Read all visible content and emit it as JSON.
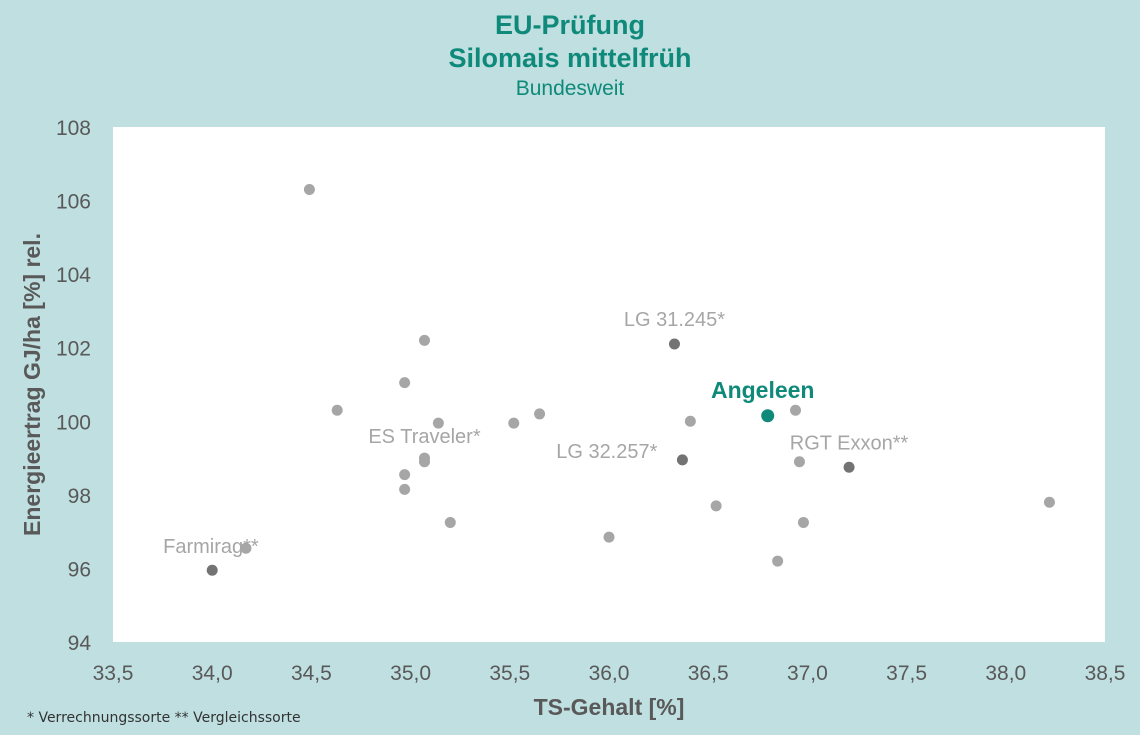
{
  "header": {
    "title": "EU-Prüfung",
    "subtitle": "Silomais mittelfrüh",
    "region": "Bundesweit"
  },
  "footnote": "* Verrechnungssorte ** Vergleichssorte",
  "colors": {
    "background": "#bfdfe1",
    "plot_area": "#ffffff",
    "point_default": "#a6a6a6",
    "point_reference": "#737373",
    "point_highlight": "#0f8a7a",
    "title": "#0f8a7a",
    "axis_text": "#595959"
  },
  "chart_data": {
    "type": "scatter",
    "title": "EU-Prüfung Silomais mittelfrüh",
    "subtitle": "Bundesweit",
    "xlabel": "TS-Gehalt [%]",
    "ylabel": "Energieertrag GJ/ha [%] rel.",
    "xlim": [
      33.5,
      38.5
    ],
    "ylim": [
      94,
      108
    ],
    "xticks": [
      "33,5",
      "34,0",
      "34,5",
      "35,0",
      "35,5",
      "36,0",
      "36,5",
      "37,0",
      "37,5",
      "38,0",
      "38,5"
    ],
    "yticks": [
      "94",
      "96",
      "98",
      "100",
      "102",
      "104",
      "106",
      "108"
    ],
    "grid": false,
    "points": [
      {
        "x": 34.49,
        "y": 106.3,
        "kind": "default",
        "label": ""
      },
      {
        "x": 35.07,
        "y": 102.2,
        "kind": "default",
        "label": ""
      },
      {
        "x": 34.97,
        "y": 101.05,
        "kind": "default",
        "label": ""
      },
      {
        "x": 34.63,
        "y": 100.3,
        "kind": "default",
        "label": ""
      },
      {
        "x": 35.14,
        "y": 99.95,
        "kind": "default",
        "label": ""
      },
      {
        "x": 35.52,
        "y": 99.95,
        "kind": "default",
        "label": ""
      },
      {
        "x": 35.65,
        "y": 100.2,
        "kind": "default",
        "label": ""
      },
      {
        "x": 35.07,
        "y": 99.0,
        "kind": "default",
        "label": "ES Traveler*"
      },
      {
        "x": 35.07,
        "y": 98.9,
        "kind": "default",
        "label": ""
      },
      {
        "x": 34.97,
        "y": 98.55,
        "kind": "default",
        "label": ""
      },
      {
        "x": 34.97,
        "y": 98.15,
        "kind": "default",
        "label": ""
      },
      {
        "x": 35.2,
        "y": 97.25,
        "kind": "default",
        "label": ""
      },
      {
        "x": 36.41,
        "y": 100.0,
        "kind": "default",
        "label": ""
      },
      {
        "x": 36.33,
        "y": 102.1,
        "kind": "reference",
        "label": "LG 31.245*"
      },
      {
        "x": 36.37,
        "y": 98.95,
        "kind": "reference",
        "label": "LG 32.257*"
      },
      {
        "x": 36.8,
        "y": 100.15,
        "kind": "highlight",
        "label": "Angeleen"
      },
      {
        "x": 36.94,
        "y": 100.3,
        "kind": "default",
        "label": ""
      },
      {
        "x": 36.96,
        "y": 98.9,
        "kind": "default",
        "label": ""
      },
      {
        "x": 37.21,
        "y": 98.75,
        "kind": "reference",
        "label": "RGT Exxon**"
      },
      {
        "x": 36.54,
        "y": 97.7,
        "kind": "default",
        "label": ""
      },
      {
        "x": 36.98,
        "y": 97.25,
        "kind": "default",
        "label": ""
      },
      {
        "x": 36.0,
        "y": 96.85,
        "kind": "default",
        "label": ""
      },
      {
        "x": 36.85,
        "y": 96.2,
        "kind": "default",
        "label": ""
      },
      {
        "x": 34.17,
        "y": 96.55,
        "kind": "default",
        "label": "Farmirag**"
      },
      {
        "x": 34.0,
        "y": 95.95,
        "kind": "reference",
        "label": ""
      },
      {
        "x": 38.22,
        "y": 97.8,
        "kind": "default",
        "label": ""
      }
    ]
  }
}
